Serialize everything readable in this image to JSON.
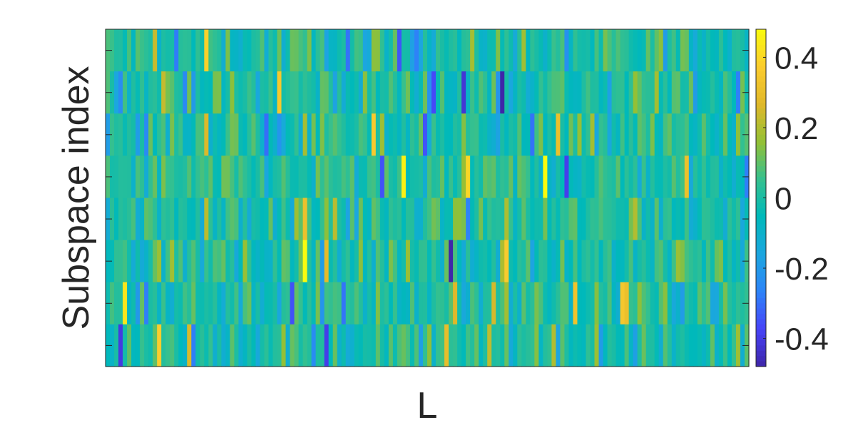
{
  "chart_data": {
    "type": "heatmap",
    "xlabel": "L",
    "ylabel": "Subspace index",
    "colormap": "parula",
    "colorbar": {
      "range": [
        -0.48,
        0.48
      ],
      "ticks": [
        {
          "value": 0.4,
          "label": "0.4"
        },
        {
          "value": 0.2,
          "label": "0.2"
        },
        {
          "value": 0,
          "label": "0"
        },
        {
          "value": -0.2,
          "label": "-0.2"
        },
        {
          "value": -0.4,
          "label": "-0.4"
        }
      ]
    },
    "x_tick_labels_shown": false,
    "y_tick_labels_shown": false,
    "rows": 8,
    "columns": 150,
    "value_range_observed": [
      -0.48,
      0.48
    ],
    "note_values": "cell values are estimated from colours"
  },
  "colors": {
    "axis": "#262626",
    "parula_stops": [
      "#3e26a8",
      "#4743f8",
      "#2d84f8",
      "#1ca6df",
      "#00b9ba",
      "#36c08e",
      "#94c035",
      "#e0b82a",
      "#fbcc2e",
      "#f9fb0e"
    ]
  }
}
